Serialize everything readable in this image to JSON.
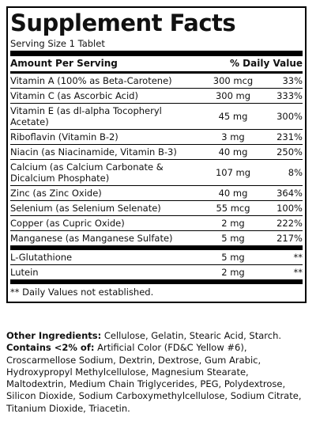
{
  "title": "Supplement Facts",
  "serving_size": "Serving Size 1 Tablet",
  "header": {
    "amount_per_serving": "Amount Per Serving",
    "daily_value": "% Daily Value"
  },
  "nutrients": [
    {
      "name": "Vitamin A (100% as Beta-Carotene)",
      "amount": "300 mcg",
      "dv": "33%"
    },
    {
      "name": "Vitamin C (as Ascorbic Acid)",
      "amount": "300 mg",
      "dv": "333%"
    },
    {
      "name": "Vitamin E (as dl-alpha Tocopheryl Acetate)",
      "amount": "45 mg",
      "dv": "300%"
    },
    {
      "name": "Riboflavin (Vitamin B-2)",
      "amount": "3 mg",
      "dv": "231%"
    },
    {
      "name": "Niacin (as Niacinamide, Vitamin B-3)",
      "amount": "40 mg",
      "dv": "250%"
    },
    {
      "name": "Calcium (as Calcium Carbonate & Dicalcium Phosphate)",
      "amount": "107 mg",
      "dv": "8%"
    },
    {
      "name": "Zinc (as Zinc Oxide)",
      "amount": "40 mg",
      "dv": "364%"
    },
    {
      "name": "Selenium (as Selenium Selenate)",
      "amount": "55 mcg",
      "dv": "100%"
    },
    {
      "name": "Copper (as Cupric Oxide)",
      "amount": "2 mg",
      "dv": "222%"
    },
    {
      "name": "Manganese (as Manganese Sulfate)",
      "amount": "5 mg",
      "dv": "217%"
    }
  ],
  "other_nutrients": [
    {
      "name": "L-Glutathione",
      "amount": "5 mg",
      "dv": "**"
    },
    {
      "name": "Lutein",
      "amount": "2 mg",
      "dv": "**"
    }
  ],
  "footnote": "** Daily Values not established.",
  "other_ingredients_label": "Other Ingredients:",
  "other_ingredients": "Cellulose, Gelatin, Stearic Acid, Starch.",
  "contains_label": "Contains <2% of:",
  "contains": "Artificial Color (FD&C Yellow #6), Croscarmellose Sodium, Dextrin, Dextrose, Gum Arabic, Hydroxypropyl Methylcellulose, Magnesium Stearate, Maltodextrin, Medium Chain Triglycerides, PEG, Polydextrose, Silicon Dioxide, Sodium Carboxymethylcellulose, Sodium Citrate, Titanium Dioxide, Triacetin."
}
